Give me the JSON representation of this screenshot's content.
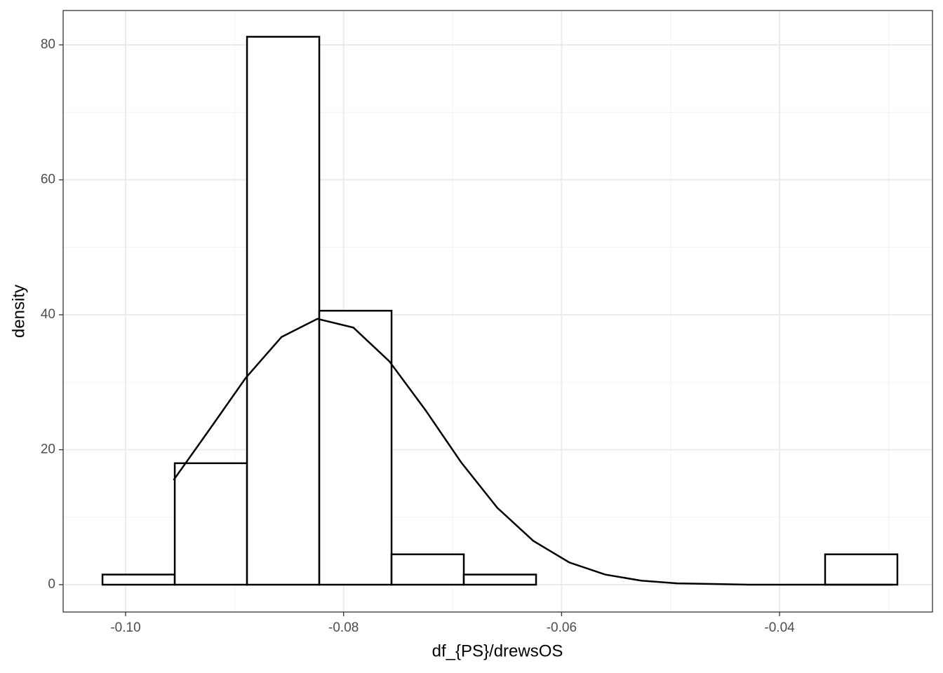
{
  "chart_data": {
    "type": "histogram",
    "xlabel": "df_{PS}/drewsOS",
    "ylabel": "density",
    "bins": [
      -0.10212,
      -0.09549,
      -0.08886,
      -0.08223,
      -0.0756,
      -0.06897,
      -0.06234,
      -0.05571,
      -0.04908,
      -0.04245,
      -0.03582,
      -0.02919
    ],
    "counts": [
      1.5,
      18,
      81.2,
      40.6,
      4.5,
      1.5,
      0,
      0,
      0,
      0,
      4.5
    ],
    "color": "#ffffff",
    "edgecolor": "#000000",
    "density_curve": {
      "color": "#000000",
      "x": [
        -0.0956,
        -0.0923,
        -0.089,
        -0.0857,
        -0.0824,
        -0.0791,
        -0.0758,
        -0.0725,
        -0.0692,
        -0.0659,
        -0.0626,
        -0.0593,
        -0.056,
        -0.0527,
        -0.0494,
        -0.0461,
        -0.0428,
        -0.0395,
        -0.0362,
        -0.0329,
        -0.0296
      ],
      "y": [
        15.5,
        23.0,
        30.6,
        36.7,
        39.4,
        38.1,
        33.1,
        25.9,
        18.1,
        11.4,
        6.5,
        3.3,
        1.5,
        0.6,
        0.2,
        0.1,
        0,
        0,
        0,
        0,
        0
      ]
    },
    "xlim": [
      -0.10573,
      -0.02597
    ],
    "ylim": [
      -4.05,
      85.09
    ],
    "xticks": [
      {
        "value": -0.1,
        "label": "-0.10"
      },
      -0.08,
      -0.06,
      -0.04
    ],
    "yticks": [
      0,
      20,
      40,
      60,
      80
    ],
    "x_minor_grid": [
      -0.09,
      -0.07,
      -0.05,
      -0.03
    ],
    "y_minor_grid": [
      10,
      30,
      50,
      70
    ],
    "grid": true
  }
}
